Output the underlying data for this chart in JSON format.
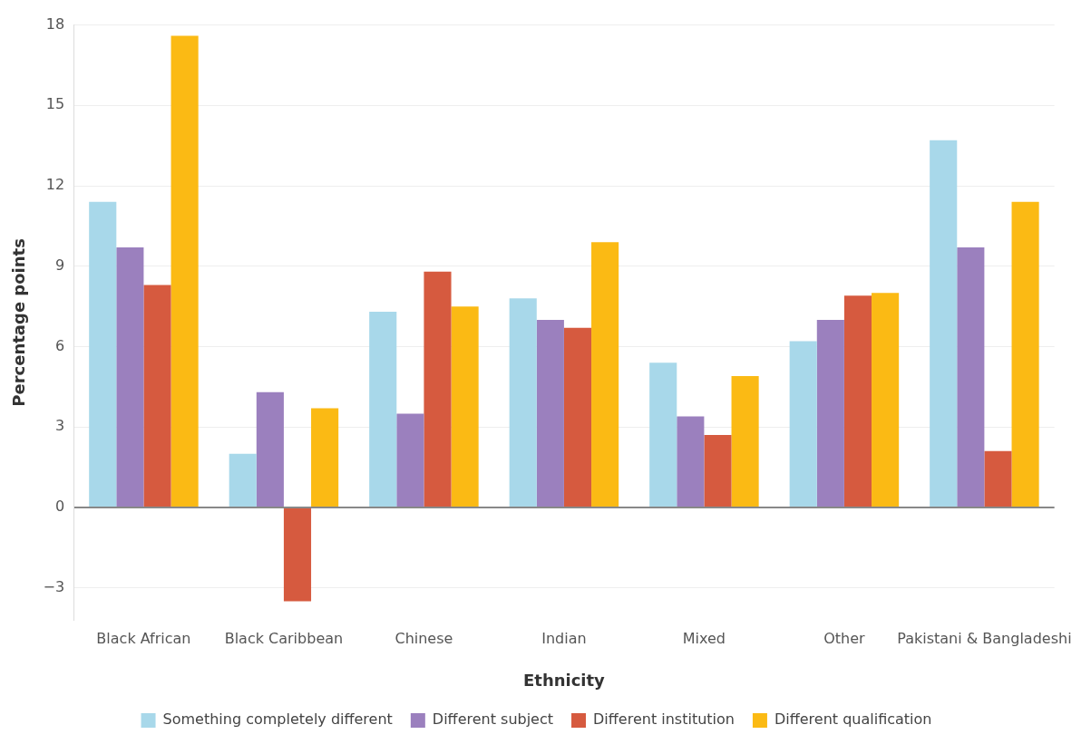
{
  "chart_data": {
    "type": "bar",
    "xlabel": "Ethnicity",
    "ylabel": "Percentage points",
    "categories": [
      "Black African",
      "Black Caribbean",
      "Chinese",
      "Indian",
      "Mixed",
      "Other",
      "Pakistani & Bangladeshi"
    ],
    "series": [
      {
        "name": "Something completely different",
        "color": "#a8d8ea",
        "values": [
          11.4,
          2.0,
          7.3,
          7.8,
          5.4,
          6.2,
          13.7
        ]
      },
      {
        "name": "Different subject",
        "color": "#9b80be",
        "values": [
          9.7,
          4.3,
          3.5,
          7.0,
          3.4,
          7.0,
          9.7
        ]
      },
      {
        "name": "Different institution",
        "color": "#d65a3f",
        "values": [
          8.3,
          -3.5,
          8.8,
          6.7,
          2.7,
          7.9,
          2.1
        ]
      },
      {
        "name": "Different qualification",
        "color": "#fbba14",
        "values": [
          17.6,
          3.7,
          7.5,
          9.9,
          4.9,
          8.0,
          11.4
        ]
      }
    ],
    "ylim": [
      -4.2,
      18
    ],
    "yticks": [
      -3,
      0,
      3,
      6,
      9,
      12,
      15,
      18
    ],
    "grid": "y",
    "legend": "bottom"
  }
}
